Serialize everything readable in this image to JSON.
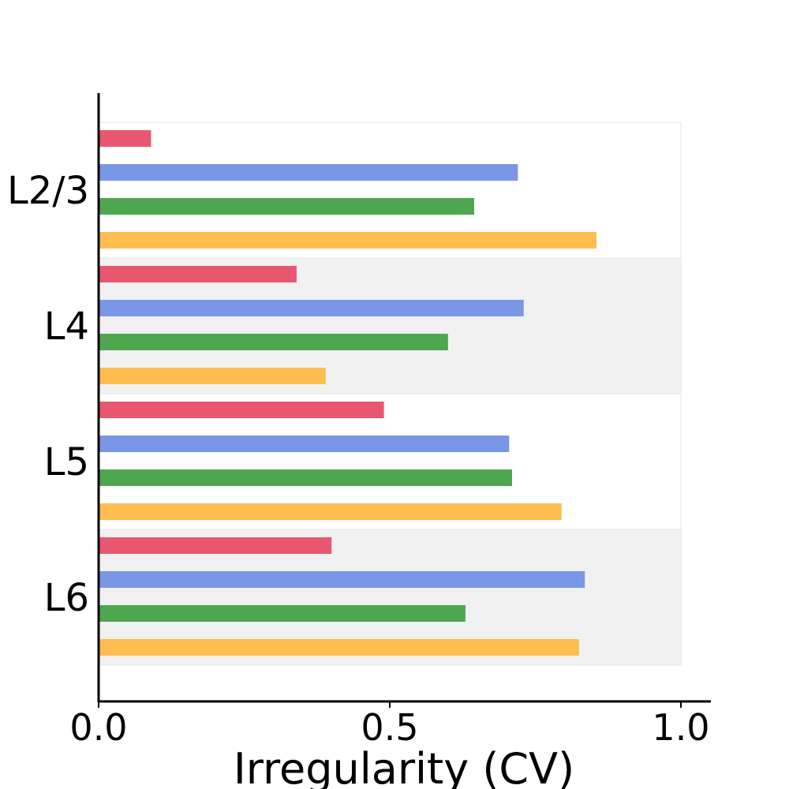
{
  "chart_data": {
    "type": "bar",
    "orientation": "horizontal",
    "xlabel": "Irregularity (CV)",
    "ylabel": "",
    "xlim": [
      0.0,
      1.05
    ],
    "xticks": [
      "0.0",
      "0.5",
      "1.0"
    ],
    "categories": [
      "L2/3",
      "L4",
      "L5",
      "L6"
    ],
    "grid": false,
    "legend": "none",
    "band_colors": [
      "#ffffff",
      "#f1f1f1",
      "#ffffff",
      "#f1f1f1"
    ],
    "series": [
      {
        "color": "#e8576f",
        "values": [
          0.09,
          0.34,
          0.49,
          0.4
        ]
      },
      {
        "color": "#7a96e6",
        "values": [
          0.72,
          0.73,
          0.705,
          0.835
        ]
      },
      {
        "color": "#4ea64e",
        "values": [
          0.645,
          0.6,
          0.71,
          0.63
        ]
      },
      {
        "color": "#fdbd4f",
        "values": [
          0.855,
          0.39,
          0.795,
          0.825
        ]
      }
    ]
  }
}
